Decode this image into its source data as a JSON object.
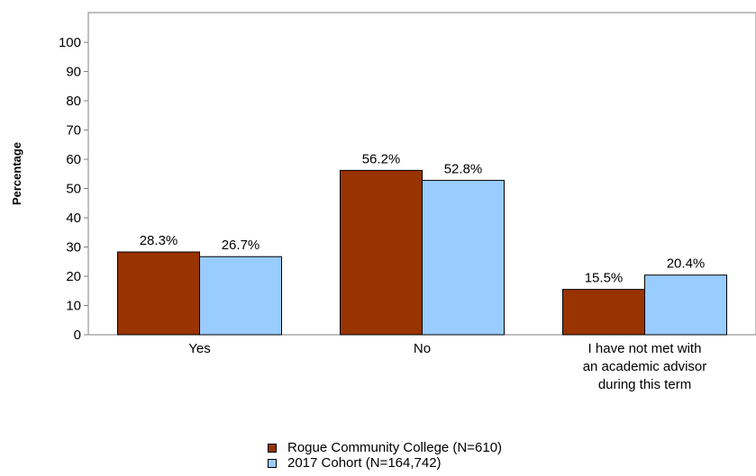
{
  "chart_data": {
    "type": "bar",
    "ylabel": "Percentage",
    "xlabel": "",
    "ylim": [
      0,
      100
    ],
    "yticks": [
      0,
      10,
      20,
      30,
      40,
      50,
      60,
      70,
      80,
      90,
      100
    ],
    "categories": [
      [
        "Yes"
      ],
      [
        "No"
      ],
      [
        "I have not met with",
        "an academic advisor",
        "during this term"
      ]
    ],
    "series": [
      {
        "name": "Rogue Community College (N=610)",
        "color": "#993300",
        "values": [
          28.3,
          56.2,
          15.5
        ],
        "labels": [
          "28.3%",
          "56.2%",
          "15.5%"
        ]
      },
      {
        "name": "2017 Cohort (N=164,742)",
        "color": "#99CCFF",
        "values": [
          26.7,
          52.8,
          20.4
        ],
        "labels": [
          "26.7%",
          "52.8%",
          "20.4%"
        ]
      }
    ],
    "grid": false,
    "legend_position": "bottom"
  }
}
